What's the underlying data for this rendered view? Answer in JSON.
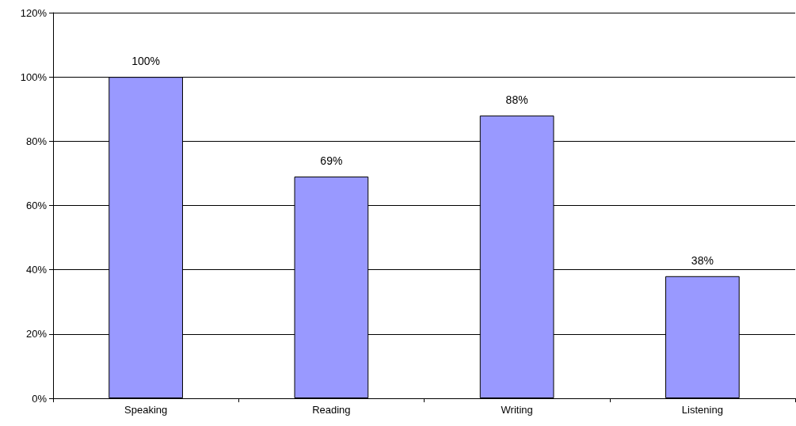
{
  "chart_data": {
    "type": "bar",
    "categories": [
      "Speaking",
      "Reading",
      "Writing",
      "Listening"
    ],
    "values": [
      100,
      69,
      88,
      38
    ],
    "value_labels": [
      "100%",
      "69%",
      "88%",
      "38%"
    ],
    "color": "#9999ff",
    "ylim": [
      0,
      120
    ],
    "yticks": [
      {
        "value": 0,
        "label": "0%"
      },
      {
        "value": 20,
        "label": "20%"
      },
      {
        "value": 40,
        "label": "40%"
      },
      {
        "value": 60,
        "label": "60%"
      },
      {
        "value": 80,
        "label": "80%"
      },
      {
        "value": 100,
        "label": "100%"
      },
      {
        "value": 120,
        "label": "120%"
      }
    ],
    "grid": "y"
  }
}
